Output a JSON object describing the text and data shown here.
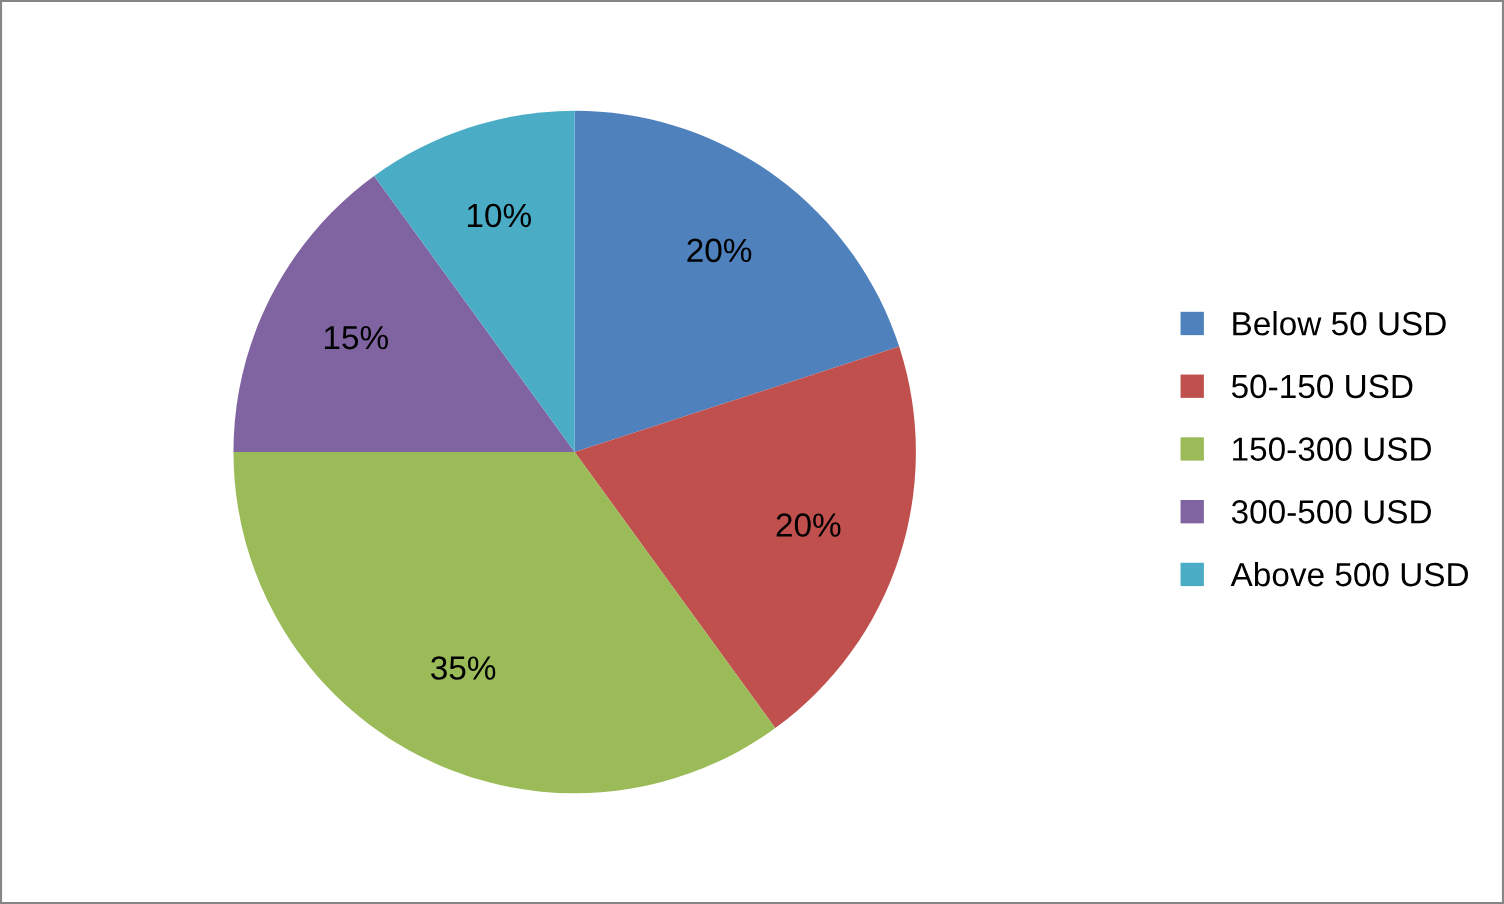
{
  "chart_data": {
    "type": "pie",
    "categories": [
      "Below 50 USD",
      "50-150 USD",
      "150-300 USD",
      "300-500 USD",
      "Above 500 USD"
    ],
    "values": [
      20,
      20,
      35,
      15,
      10
    ],
    "value_labels": [
      "20%",
      "20%",
      "35%",
      "15%",
      "10%"
    ],
    "colors": [
      "#4f81bd",
      "#c0504d",
      "#9bbb59",
      "#8064a2",
      "#4bacc6"
    ],
    "legend": "right"
  }
}
